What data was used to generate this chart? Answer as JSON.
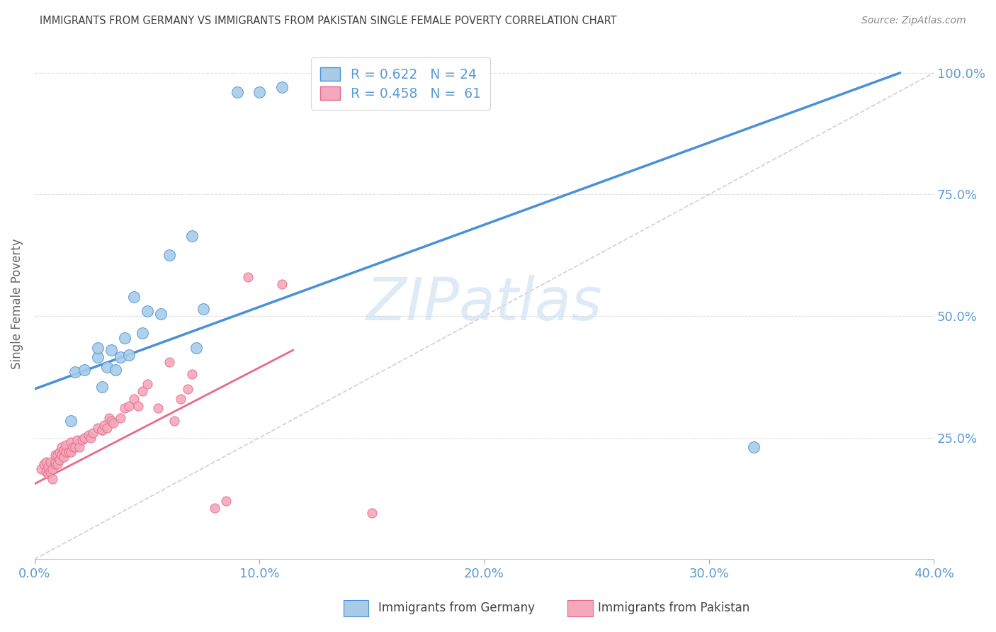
{
  "title": "IMMIGRANTS FROM GERMANY VS IMMIGRANTS FROM PAKISTAN SINGLE FEMALE POVERTY CORRELATION CHART",
  "source": "Source: ZipAtlas.com",
  "ylabel": "Single Female Poverty",
  "x_tick_labels": [
    "0.0%",
    "10.0%",
    "20.0%",
    "30.0%",
    "40.0%"
  ],
  "x_tick_values": [
    0.0,
    0.1,
    0.2,
    0.3,
    0.4
  ],
  "y_tick_labels": [
    "25.0%",
    "50.0%",
    "75.0%",
    "100.0%"
  ],
  "y_tick_values": [
    0.25,
    0.5,
    0.75,
    1.0
  ],
  "germany_R": 0.622,
  "germany_N": 24,
  "pakistan_R": 0.458,
  "pakistan_N": 61,
  "germany_color": "#A8CCE8",
  "pakistan_color": "#F4A8BC",
  "germany_line_color": "#4A90D9",
  "pakistan_line_color": "#E8698A",
  "ref_line_color": "#C8C8C8",
  "background_color": "#FFFFFF",
  "grid_color": "#DDDDDD",
  "axis_label_color": "#5B9BD5",
  "title_color": "#404040",
  "xlim": [
    0.0,
    0.4
  ],
  "ylim": [
    0.0,
    1.05
  ],
  "germany_scatter_x": [
    0.016,
    0.018,
    0.022,
    0.028,
    0.028,
    0.03,
    0.032,
    0.034,
    0.036,
    0.038,
    0.04,
    0.042,
    0.044,
    0.048,
    0.05,
    0.056,
    0.06,
    0.07,
    0.072,
    0.075,
    0.09,
    0.1,
    0.11,
    0.32
  ],
  "germany_scatter_y": [
    0.285,
    0.385,
    0.39,
    0.415,
    0.435,
    0.355,
    0.395,
    0.43,
    0.39,
    0.415,
    0.455,
    0.42,
    0.54,
    0.465,
    0.51,
    0.505,
    0.625,
    0.665,
    0.435,
    0.515,
    0.96,
    0.96,
    0.97,
    0.23
  ],
  "pakistan_scatter_x": [
    0.003,
    0.004,
    0.005,
    0.005,
    0.006,
    0.006,
    0.007,
    0.007,
    0.008,
    0.008,
    0.009,
    0.009,
    0.009,
    0.01,
    0.01,
    0.011,
    0.011,
    0.012,
    0.012,
    0.013,
    0.013,
    0.014,
    0.014,
    0.015,
    0.016,
    0.016,
    0.017,
    0.018,
    0.019,
    0.02,
    0.021,
    0.022,
    0.024,
    0.025,
    0.026,
    0.028,
    0.03,
    0.03,
    0.031,
    0.032,
    0.033,
    0.034,
    0.035,
    0.038,
    0.04,
    0.042,
    0.044,
    0.046,
    0.048,
    0.05,
    0.055,
    0.06,
    0.062,
    0.065,
    0.068,
    0.07,
    0.08,
    0.085,
    0.095,
    0.11,
    0.15
  ],
  "pakistan_scatter_y": [
    0.185,
    0.195,
    0.18,
    0.2,
    0.175,
    0.19,
    0.18,
    0.2,
    0.165,
    0.185,
    0.195,
    0.2,
    0.215,
    0.195,
    0.215,
    0.205,
    0.22,
    0.215,
    0.23,
    0.21,
    0.225,
    0.22,
    0.235,
    0.22,
    0.22,
    0.24,
    0.23,
    0.23,
    0.245,
    0.23,
    0.245,
    0.25,
    0.255,
    0.25,
    0.26,
    0.27,
    0.265,
    0.265,
    0.275,
    0.27,
    0.29,
    0.285,
    0.28,
    0.29,
    0.31,
    0.315,
    0.33,
    0.315,
    0.345,
    0.36,
    0.31,
    0.405,
    0.285,
    0.33,
    0.35,
    0.38,
    0.105,
    0.12,
    0.58,
    0.565,
    0.095
  ],
  "germany_line_x": [
    0.0,
    0.385
  ],
  "germany_line_y": [
    0.35,
    1.0
  ],
  "pakistan_line_x": [
    0.0,
    0.115
  ],
  "pakistan_line_y": [
    0.155,
    0.43
  ],
  "ref_line_x": [
    0.0,
    0.4
  ],
  "ref_line_y": [
    0.0,
    1.0
  ],
  "marker_size_germany": 130,
  "marker_size_pakistan": 90,
  "watermark_text": "ZIPatlas",
  "watermark_color": "#C8DFF0",
  "legend_label_germany": "R = 0.622   N = 24",
  "legend_label_pakistan": "R = 0.458   N =  61",
  "bottom_legend_germany": "Immigrants from Germany",
  "bottom_legend_pakistan": "Immigrants from Pakistan"
}
